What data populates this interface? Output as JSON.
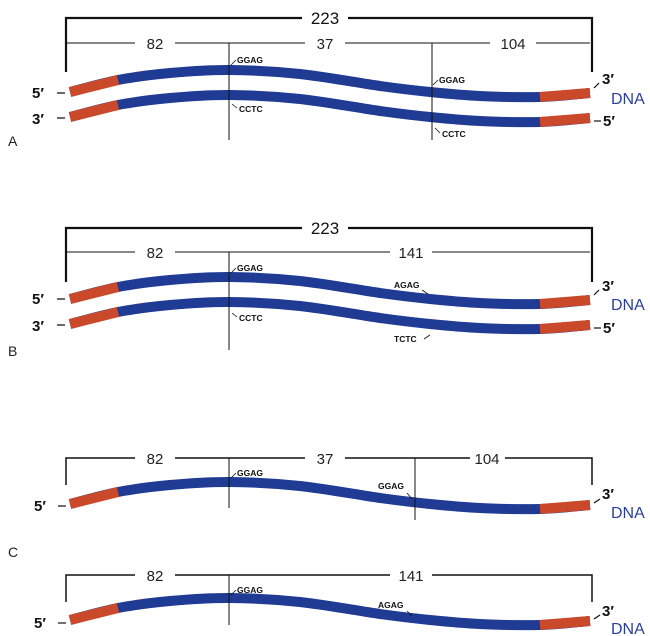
{
  "colors": {
    "strand": "#1f3b94",
    "flank": "#c9492a",
    "dna_label": "#2a3f9a"
  },
  "panels": {
    "A": {
      "label": "A",
      "total": "223",
      "segments": [
        "82",
        "37",
        "104"
      ],
      "top_sites": [
        "GGAG",
        "GGAG"
      ],
      "bottom_sites": [
        "CCTC",
        "CCTC"
      ],
      "top_left": "5′",
      "top_right": "3′",
      "bottom_left": "3′",
      "bottom_right": "5′",
      "dna": "DNA"
    },
    "B": {
      "label": "B",
      "total": "223",
      "segments": [
        "82",
        "141"
      ],
      "top_sites": [
        "GGAG",
        "AGAG"
      ],
      "bottom_sites": [
        "CCTC",
        "TCTC"
      ],
      "top_left": "5′",
      "top_right": "3′",
      "bottom_left": "3′",
      "bottom_right": "5′",
      "dna": "DNA"
    },
    "C": {
      "label": "C",
      "first": {
        "segments": [
          "82",
          "37",
          "104"
        ],
        "sites": [
          "GGAG",
          "GGAG"
        ],
        "left": "5′",
        "right": "3′",
        "dna": "DNA"
      },
      "second": {
        "segments": [
          "82",
          "141"
        ],
        "sites": [
          "GGAG",
          "AGAG"
        ],
        "left": "5′",
        "right": "3′",
        "dna": "DNA"
      }
    }
  }
}
